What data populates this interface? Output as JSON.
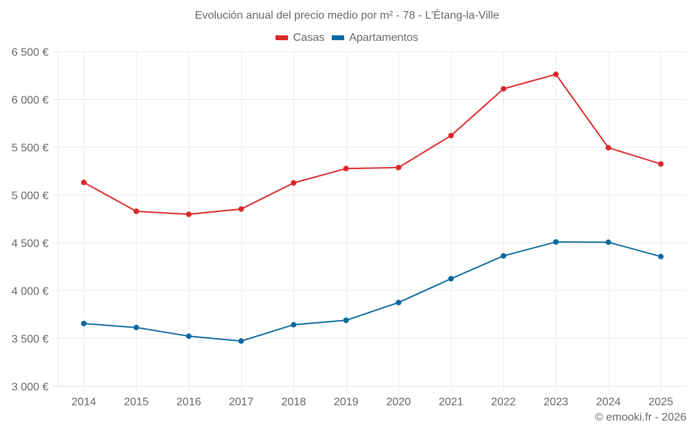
{
  "chart_data": {
    "type": "line",
    "title": "Evolución anual del precio medio por m² - 78 - L'Étang-la-Ville",
    "xlabel": "",
    "ylabel": "",
    "categories": [
      "2014",
      "2015",
      "2016",
      "2017",
      "2018",
      "2019",
      "2020",
      "2021",
      "2022",
      "2023",
      "2024",
      "2025"
    ],
    "ylim": [
      3000,
      6500
    ],
    "yticks": [
      3000,
      3500,
      4000,
      4500,
      5000,
      5500,
      6000,
      6500
    ],
    "ytick_labels": [
      "3 000 €",
      "3 500 €",
      "4 000 €",
      "4 500 €",
      "5 000 €",
      "5 500 €",
      "6 000 €",
      "6 500 €"
    ],
    "grid": true,
    "legend_position": "top-center",
    "series": [
      {
        "name": "Casas",
        "color": "#dc2627",
        "values": [
          5128,
          4826,
          4795,
          4850,
          5123,
          5273,
          5283,
          5618,
          6107,
          6259,
          5491,
          5321
        ]
      },
      {
        "name": "Apartamentos",
        "color": "#0b68a0",
        "values": [
          3652,
          3611,
          3520,
          3469,
          3640,
          3686,
          3872,
          4121,
          4360,
          4505,
          4503,
          4353
        ]
      }
    ]
  },
  "footer": {
    "credit": "© emooki.fr - 2026"
  }
}
